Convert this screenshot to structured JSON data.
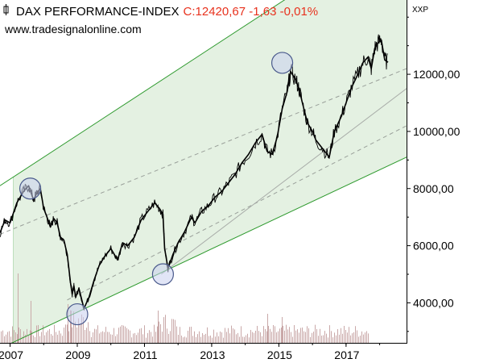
{
  "header": {
    "title": "DAX PERFORMANCE-INDEX",
    "quote": "C:12420,67 -1,63 -0,01%",
    "source": "www.tradesignalonline.com",
    "currency": "XXP"
  },
  "colors": {
    "price_line": "#000000",
    "channel_line": "#2e9a2e",
    "channel_fill": "#e4f1e2",
    "midline": "#9aa09a",
    "trendline": "#a8aca8",
    "volume": "#c9a8a8",
    "circle_stroke": "#4a5a8c",
    "circle_fill": "#c8d0ee",
    "quote": "#e8321e"
  },
  "chart_data": {
    "type": "line",
    "title": "DAX PERFORMANCE-INDEX",
    "xlabel": "",
    "ylabel": "",
    "x_ticks": [
      "2007",
      "2009",
      "2011",
      "2013",
      "2015",
      "2017"
    ],
    "y_ticks": [
      "4000,00",
      "6000,00",
      "8000,00",
      "10000,00",
      "12000,00"
    ],
    "y_tick_values": [
      4000,
      6000,
      8000,
      10000,
      12000
    ],
    "xlim": [
      2006.7,
      2018.8
    ],
    "ylim": [
      2600,
      14600
    ],
    "grid": false,
    "series": [
      {
        "x": [
          2006.7,
          2006.85,
          2007.0,
          2007.2,
          2007.4,
          2007.55,
          2007.7,
          2007.8,
          2007.9,
          2008.0,
          2008.1,
          2008.2,
          2008.3,
          2008.4,
          2008.5,
          2008.6,
          2008.7,
          2008.8,
          2008.85,
          2008.9,
          2008.95,
          2009.05,
          2009.2,
          2009.35,
          2009.5,
          2009.65,
          2009.8,
          2010.0,
          2010.2,
          2010.35,
          2010.5,
          2010.7,
          2010.9,
          2011.1,
          2011.3,
          2011.45,
          2011.55,
          2011.6,
          2011.7,
          2011.85,
          2012.0,
          2012.2,
          2012.4,
          2012.5,
          2012.7,
          2012.9,
          2013.1,
          2013.3,
          2013.5,
          2013.7,
          2013.9,
          2014.1,
          2014.3,
          2014.5,
          2014.65,
          2014.8,
          2014.95,
          2015.1,
          2015.25,
          2015.35,
          2015.5,
          2015.6,
          2015.7,
          2015.85,
          2016.0,
          2016.1,
          2016.3,
          2016.5,
          2016.65,
          2016.85,
          2017.0,
          2017.15,
          2017.35,
          2017.5,
          2017.65,
          2017.75,
          2017.85,
          2017.95,
          2018.05,
          2018.15,
          2018.25
        ],
        "y": [
          6450,
          6900,
          6800,
          7500,
          7900,
          8100,
          7600,
          7850,
          8000,
          7300,
          7000,
          6650,
          6950,
          6800,
          6300,
          6200,
          5700,
          4700,
          4300,
          4600,
          4200,
          4500,
          3800,
          4200,
          4800,
          5300,
          5600,
          5900,
          5500,
          6100,
          6000,
          6300,
          6900,
          7200,
          7500,
          7300,
          7100,
          5900,
          5200,
          5700,
          6100,
          6500,
          7000,
          6800,
          7200,
          7400,
          7700,
          7900,
          8200,
          8500,
          8900,
          9200,
          9600,
          9900,
          9300,
          9200,
          9800,
          10800,
          11400,
          12100,
          11800,
          11500,
          11000,
          10300,
          10000,
          9700,
          9400,
          9100,
          10000,
          10500,
          11000,
          11500,
          12000,
          12400,
          12600,
          12200,
          12900,
          13100,
          13200,
          12500,
          12420
        ]
      }
    ],
    "channel": {
      "upper": {
        "x": [
          2006.7,
          2017.9
        ],
        "y": [
          8100,
          16700
        ]
      },
      "lower": {
        "x": [
          2006.7,
          2018.8
        ],
        "y": [
          2400,
          9100
        ]
      },
      "mid_upper": {
        "x": [
          2006.7,
          2018.8
        ],
        "y": [
          6400,
          12200
        ]
      },
      "mid_lower": {
        "x": [
          2008.7,
          2018.8
        ],
        "y": [
          4100,
          10200
        ]
      },
      "trendline": {
        "x": [
          2011.5,
          2018.8
        ],
        "y": [
          5000,
          11500
        ]
      }
    },
    "highlights": [
      {
        "x": 2007.6,
        "y": 8000
      },
      {
        "x": 2009.0,
        "y": 3600
      },
      {
        "x": 2011.55,
        "y": 5000
      },
      {
        "x": 2015.1,
        "y": 12400
      }
    ]
  }
}
